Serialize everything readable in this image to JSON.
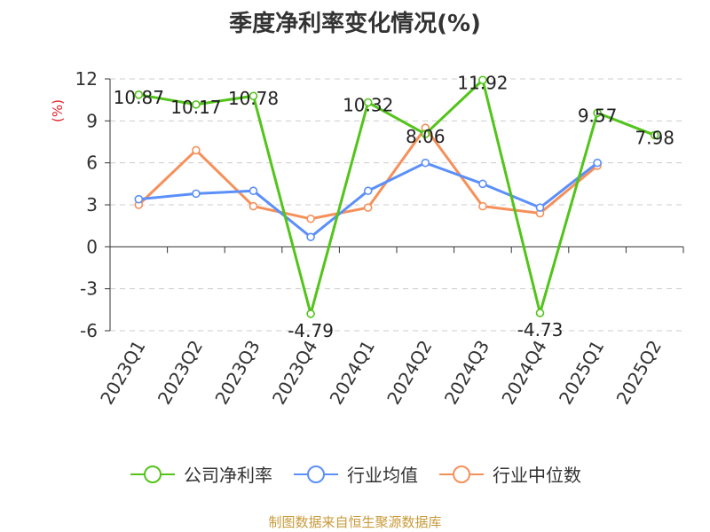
{
  "chart_data": {
    "type": "line",
    "title": "季度净利率变化情况(%)",
    "ylabel": "(%)",
    "xlabel": "",
    "categories": [
      "2023Q1",
      "2023Q2",
      "2023Q3",
      "2023Q4",
      "2024Q1",
      "2024Q2",
      "2024Q3",
      "2024Q4",
      "2025Q1",
      "2025Q2"
    ],
    "ylim": [
      -6,
      12
    ],
    "yticks": [
      12,
      9,
      6,
      3,
      0,
      -3,
      -6
    ],
    "ytick_labels": [
      "12",
      "9",
      "6",
      "3",
      "0",
      "-3",
      "-6"
    ],
    "grid": true,
    "legend_position": "bottom",
    "series": [
      {
        "name": "公司净利率",
        "color": "#52c41a",
        "values": [
          10.87,
          10.17,
          10.78,
          -4.79,
          10.32,
          8.06,
          11.92,
          -4.73,
          9.57,
          7.98
        ],
        "data_labels": [
          "10.87",
          "10.17",
          "10.78",
          "-4.79",
          "10.32",
          "8.06",
          "11.92",
          "-4.73",
          "9.57",
          "7.98"
        ]
      },
      {
        "name": "行业均值",
        "color": "#5b8ff9",
        "values": [
          3.4,
          3.8,
          4.0,
          0.7,
          4.0,
          6.0,
          4.5,
          2.8,
          6.0,
          null
        ]
      },
      {
        "name": "行业中位数",
        "color": "#f6905a",
        "values": [
          3.0,
          6.9,
          2.9,
          2.0,
          2.8,
          8.5,
          2.9,
          2.4,
          5.8,
          null
        ]
      }
    ],
    "source": "制图数据来自恒生聚源数据库"
  }
}
